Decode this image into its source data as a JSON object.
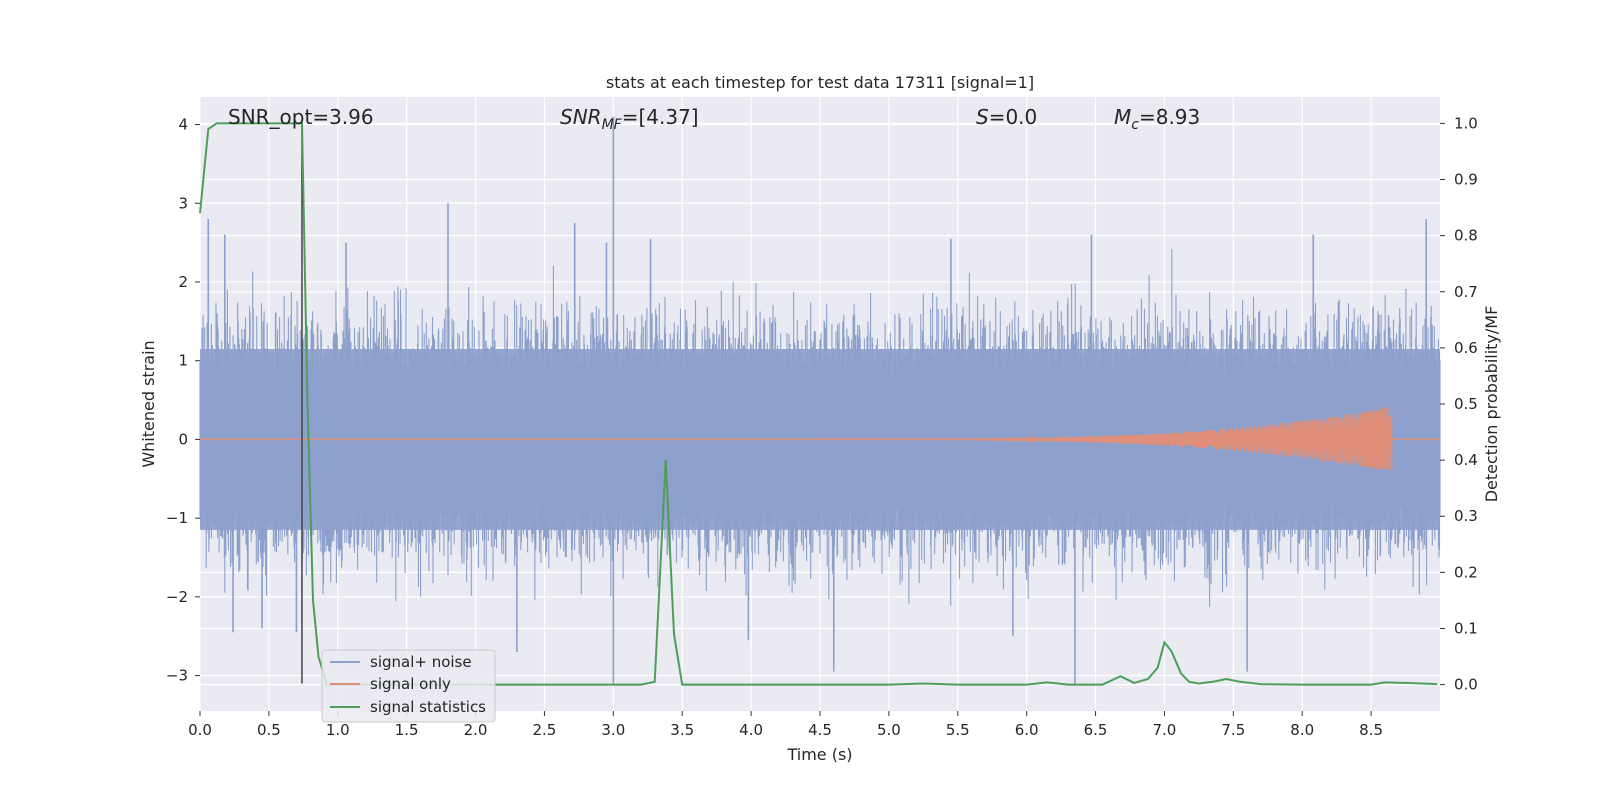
{
  "chart_data": {
    "type": "line",
    "title": "stats at each timestep for test data 17311 [signal=1]",
    "xlabel": "Time (s)",
    "ylabel_left": "Whitened strain",
    "ylabel_right": "Detection probability/MF",
    "xlim": [
      0.0,
      9.0
    ],
    "ylim_left": [
      -3.45,
      4.35
    ],
    "ylim_right": [
      -0.047,
      1.047
    ],
    "x_ticks": [
      "0.0",
      "0.5",
      "1.0",
      "1.5",
      "2.0",
      "2.5",
      "3.0",
      "3.5",
      "4.0",
      "4.5",
      "5.0",
      "5.5",
      "6.0",
      "6.5",
      "7.0",
      "7.5",
      "8.0",
      "8.5"
    ],
    "x_tick_values": [
      0.0,
      0.5,
      1.0,
      1.5,
      2.0,
      2.5,
      3.0,
      3.5,
      4.0,
      4.5,
      5.0,
      5.5,
      6.0,
      6.5,
      7.0,
      7.5,
      8.0,
      8.5
    ],
    "y_ticks_left": [
      "−3",
      "−2",
      "−1",
      "0",
      "1",
      "2",
      "3",
      "4"
    ],
    "y_tick_values_left": [
      -3,
      -2,
      -1,
      0,
      1,
      2,
      3,
      4
    ],
    "y_ticks_right": [
      "0.0",
      "0.1",
      "0.2",
      "0.3",
      "0.4",
      "0.5",
      "0.6",
      "0.7",
      "0.8",
      "0.9",
      "1.0"
    ],
    "y_tick_values_right": [
      0.0,
      0.1,
      0.2,
      0.3,
      0.4,
      0.5,
      0.6,
      0.7,
      0.8,
      0.9,
      1.0
    ],
    "grid": true,
    "legend_position": "lower-left",
    "annotations": {
      "snr_opt": "SNR_opt=3.96",
      "snr_mf_base": "SNR",
      "snr_mf_sub": "MF",
      "snr_mf_value": "=[4.37]",
      "s_base": "S",
      "s_value": "=0.0",
      "mc_base": "M",
      "mc_sub": "c",
      "mc_value": "=8.93"
    },
    "vertical_marker_x": 0.74,
    "series": [
      {
        "name": "signal+ noise",
        "color": "#8da0cb",
        "axis": "left",
        "kind": "noise",
        "band": 1.15,
        "peaks": [
          {
            "x": 0.06,
            "y": 2.8
          },
          {
            "x": 0.18,
            "y": 2.6
          },
          {
            "x": 1.06,
            "y": 2.5
          },
          {
            "x": 1.8,
            "y": 3.0
          },
          {
            "x": 2.72,
            "y": 2.75
          },
          {
            "x": 2.95,
            "y": 2.5
          },
          {
            "x": 3.0,
            "y": 4.1
          },
          {
            "x": 3.27,
            "y": 2.55
          },
          {
            "x": 5.45,
            "y": 2.55
          },
          {
            "x": 6.47,
            "y": 2.6
          },
          {
            "x": 8.08,
            "y": 2.6
          },
          {
            "x": 8.9,
            "y": 2.8
          }
        ],
        "troughs": [
          {
            "x": 0.24,
            "y": -2.45
          },
          {
            "x": 0.45,
            "y": -2.4
          },
          {
            "x": 0.7,
            "y": -2.45
          },
          {
            "x": 2.3,
            "y": -2.7
          },
          {
            "x": 3.0,
            "y": -3.1
          },
          {
            "x": 3.98,
            "y": -2.55
          },
          {
            "x": 4.6,
            "y": -2.95
          },
          {
            "x": 5.9,
            "y": -2.5
          },
          {
            "x": 6.35,
            "y": -3.1
          },
          {
            "x": 7.6,
            "y": -2.95
          }
        ]
      },
      {
        "name": "signal only",
        "color": "#e0907a",
        "axis": "left",
        "kind": "chirp",
        "start": 4.5,
        "end": 8.65,
        "peak_amplitude": 0.42
      },
      {
        "name": "signal statistics",
        "color": "#4e9e5a",
        "axis": "right",
        "kind": "line",
        "x": [
          0.0,
          0.06,
          0.12,
          0.7,
          0.74,
          0.78,
          0.82,
          0.86,
          0.92,
          3.2,
          3.3,
          3.38,
          3.44,
          3.5,
          4.0,
          5.0,
          5.25,
          5.5,
          6.0,
          6.15,
          6.3,
          6.55,
          6.68,
          6.78,
          6.88,
          6.95,
          7.0,
          7.05,
          7.12,
          7.18,
          7.25,
          7.35,
          7.45,
          7.55,
          7.7,
          8.0,
          8.5,
          8.6,
          8.75,
          8.98
        ],
        "y": [
          0.84,
          0.99,
          1.0,
          1.0,
          1.0,
          0.5,
          0.15,
          0.05,
          0.0,
          0.0,
          0.005,
          0.4,
          0.09,
          0.0,
          0.0,
          0.0,
          0.002,
          0.0,
          0.0,
          0.004,
          0.0,
          0.0,
          0.015,
          0.003,
          0.01,
          0.03,
          0.075,
          0.06,
          0.02,
          0.005,
          0.002,
          0.005,
          0.01,
          0.005,
          0.001,
          0.0,
          0.0,
          0.004,
          0.003,
          0.001
        ]
      }
    ]
  }
}
